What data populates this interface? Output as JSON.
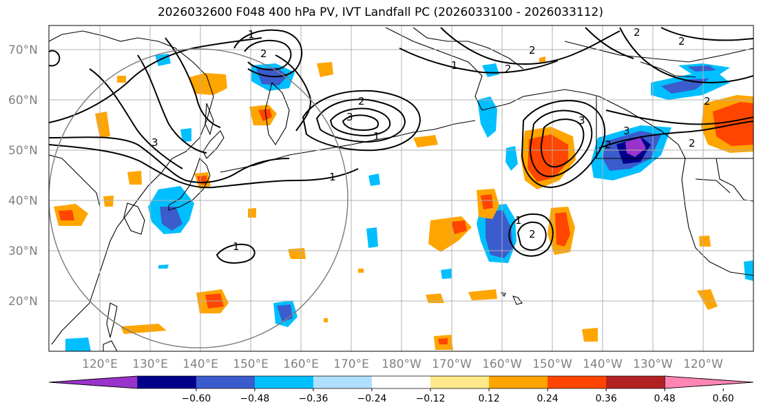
{
  "title": "2026032600 F048 400 hPa PV, IVT Landfall PC (2026033100 - 2026033112)",
  "lat_labels": [
    "70°N",
    "60°N",
    "50°N",
    "40°N",
    "30°N",
    "20°N"
  ],
  "lon_labels": [
    "120°E",
    "130°E",
    "140°E",
    "150°E",
    "160°E",
    "170°E",
    "180°W",
    "170°W",
    "160°W",
    "150°W",
    "140°W",
    "130°W",
    "120°W"
  ],
  "colorbar": {
    "ticks": [
      "−0.60",
      "−0.48",
      "−0.36",
      "−0.24",
      "−0.12",
      "0.12",
      "0.24",
      "0.36",
      "0.48",
      "0.60"
    ],
    "colors": [
      "#9933cc",
      "#00008b",
      "#3a5ccc",
      "#00bfff",
      "#b0e0ff",
      "#ffffff",
      "#ffe98a",
      "#ffa500",
      "#ff4500",
      "#b22222",
      "#ff85b4"
    ]
  },
  "contour_labels": [
    "1",
    "2",
    "3"
  ],
  "colors": {
    "land_outline": "#000000",
    "grid": "#b0b0b0",
    "circle": "#808080",
    "contour": "#000000"
  }
}
